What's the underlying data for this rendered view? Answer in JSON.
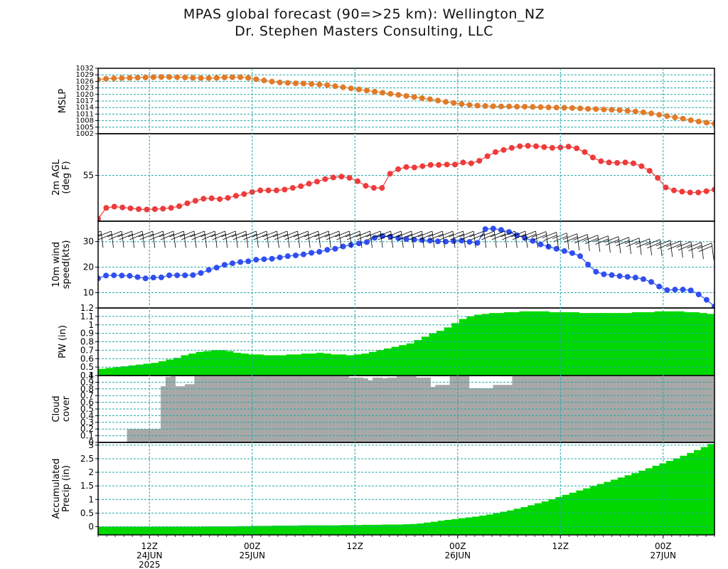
{
  "title_line1": "MPAS global forecast (90=>25 km): Wellington_NZ",
  "title_line2": "Dr. Stephen Masters Consulting, LLC",
  "colors": {
    "mslp": "#e07b29",
    "temp": "#ee3b3b",
    "wind": "#2f4ff0",
    "pw": "#00d800",
    "cloud": "#a8a8a8",
    "precip": "#00d800",
    "grid": "#22a7a7",
    "frame": "#000000"
  },
  "chart_data": [
    {
      "type": "line",
      "ylabel": [
        "MSLP"
      ],
      "ylim": [
        1002,
        1032
      ],
      "yticks": [
        1002,
        1005,
        1008,
        1011,
        1014,
        1017,
        1020,
        1023,
        1026,
        1029,
        1032
      ],
      "ytick_labels": [
        "1002",
        "1005",
        "1008",
        "1011",
        "1014",
        "1017",
        "1020",
        "1023",
        "1026",
        "1029",
        "1032"
      ],
      "tick_density": "dense",
      "marker": "circle",
      "series": [
        {
          "color": "#e07b29",
          "values": [
            1026.8,
            1027.2,
            1027.4,
            1027.5,
            1027.6,
            1027.7,
            1027.8,
            1027.9,
            1028.0,
            1028.0,
            1027.9,
            1027.8,
            1027.6,
            1027.5,
            1027.5,
            1027.6,
            1027.8,
            1027.9,
            1027.9,
            1027.6,
            1027.0,
            1026.4,
            1025.9,
            1025.5,
            1025.3,
            1025.1,
            1025.0,
            1024.8,
            1024.6,
            1024.3,
            1023.8,
            1023.3,
            1022.8,
            1022.3,
            1021.8,
            1021.3,
            1020.8,
            1020.3,
            1019.8,
            1019.3,
            1018.8,
            1018.3,
            1017.8,
            1017.2,
            1016.6,
            1016.1,
            1015.6,
            1015.2,
            1014.9,
            1014.7,
            1014.6,
            1014.5,
            1014.5,
            1014.4,
            1014.4,
            1014.3,
            1014.2,
            1014.1,
            1014.0,
            1013.9,
            1013.8,
            1013.6,
            1013.4,
            1013.3,
            1013.1,
            1013.0,
            1012.8,
            1012.5,
            1012.2,
            1011.8,
            1011.3,
            1010.7,
            1010.1,
            1009.5,
            1008.9,
            1008.2,
            1007.6,
            1007.1,
            1006.6
          ]
        }
      ]
    },
    {
      "type": "line",
      "ylabel": [
        "2m AGL",
        "(deg F)"
      ],
      "ylim": [
        44,
        65
      ],
      "yticks": [
        55
      ],
      "ytick_labels": [
        "55"
      ],
      "marker": "circle",
      "series": [
        {
          "color": "#ee3b3b",
          "values": [
            44.6,
            47.2,
            47.5,
            47.3,
            47.1,
            46.9,
            46.8,
            46.9,
            47.0,
            47.2,
            47.6,
            48.3,
            48.9,
            49.4,
            49.5,
            49.3,
            49.6,
            50.1,
            50.5,
            51.0,
            51.4,
            51.4,
            51.4,
            51.6,
            52.0,
            52.4,
            53.0,
            53.5,
            54.1,
            54.5,
            54.7,
            54.4,
            53.6,
            52.5,
            52.0,
            52.0,
            55.4,
            56.5,
            57.0,
            56.9,
            57.2,
            57.5,
            57.5,
            57.6,
            57.6,
            58.1,
            57.9,
            58.5,
            59.6,
            60.6,
            61.1,
            61.6,
            62.0,
            62.1,
            62.0,
            61.8,
            61.6,
            61.7,
            61.9,
            61.5,
            60.6,
            59.3,
            58.4,
            58.1,
            58.0,
            58.1,
            57.9,
            57.2,
            56.1,
            54.4,
            52.1,
            51.4,
            51.1,
            50.9,
            50.9,
            51.2,
            51.6
          ]
        }
      ]
    },
    {
      "type": "line",
      "ylabel": [
        "10m wind",
        "speed(kts)"
      ],
      "ylim": [
        4,
        38
      ],
      "yticks": [
        10,
        20,
        30
      ],
      "ytick_labels": [
        "10",
        "20",
        "30"
      ],
      "marker": "circle",
      "barbs": "wind barbs along top",
      "series": [
        {
          "color": "#2f4ff0",
          "values": [
            15.6,
            16.7,
            16.8,
            16.7,
            16.6,
            16.1,
            15.6,
            15.9,
            16.0,
            16.8,
            16.8,
            16.8,
            16.9,
            17.7,
            18.9,
            19.8,
            20.9,
            21.5,
            22.0,
            22.3,
            22.9,
            23.1,
            23.3,
            23.8,
            24.3,
            24.6,
            25.0,
            25.6,
            26.0,
            26.8,
            27.2,
            28.1,
            28.7,
            29.3,
            29.8,
            31.5,
            32.2,
            31.9,
            31.3,
            31.0,
            30.8,
            30.6,
            30.4,
            30.1,
            30.0,
            30.2,
            30.4,
            29.9,
            29.5,
            34.9,
            35.1,
            34.6,
            33.8,
            32.5,
            31.4,
            30.3,
            28.9,
            28.0,
            27.2,
            26.3,
            25.5,
            24.3,
            21.0,
            18.2,
            17.2,
            16.9,
            16.5,
            16.2,
            15.9,
            15.3,
            14.2,
            12.4,
            11.0,
            11.2,
            11.2,
            10.9,
            9.3,
            7.2,
            4.6
          ]
        }
      ]
    },
    {
      "type": "area",
      "ylabel": [
        "PW (in)"
      ],
      "ylim": [
        0.4,
        1.2
      ],
      "yticks": [
        0.4,
        0.5,
        0.6,
        0.7,
        0.8,
        0.9,
        1.0,
        1.1,
        1.2
      ],
      "ytick_labels": [
        "0.4",
        "0.5",
        "0.6",
        "0.7",
        "0.8",
        "0.9",
        "1",
        "1.1",
        "1.2"
      ],
      "series": [
        {
          "color": "#00d800",
          "values": [
            0.48,
            0.49,
            0.5,
            0.51,
            0.52,
            0.53,
            0.54,
            0.55,
            0.57,
            0.59,
            0.61,
            0.64,
            0.66,
            0.68,
            0.69,
            0.7,
            0.7,
            0.69,
            0.67,
            0.66,
            0.65,
            0.65,
            0.64,
            0.64,
            0.64,
            0.65,
            0.65,
            0.66,
            0.66,
            0.67,
            0.66,
            0.65,
            0.65,
            0.64,
            0.65,
            0.66,
            0.68,
            0.7,
            0.72,
            0.74,
            0.76,
            0.78,
            0.82,
            0.86,
            0.9,
            0.93,
            0.97,
            1.02,
            1.07,
            1.1,
            1.12,
            1.13,
            1.14,
            1.14,
            1.15,
            1.15,
            1.16,
            1.16,
            1.16,
            1.16,
            1.15,
            1.15,
            1.15,
            1.15,
            1.14,
            1.14,
            1.14,
            1.14,
            1.14,
            1.14,
            1.14,
            1.15,
            1.15,
            1.15,
            1.16,
            1.16,
            1.16,
            1.16,
            1.15,
            1.15,
            1.14,
            1.13
          ]
        }
      ]
    },
    {
      "type": "bar",
      "ylabel": [
        "Cloud",
        "cover"
      ],
      "ylim": [
        0,
        1.0
      ],
      "yticks": [
        0,
        0.1,
        0.2,
        0.3,
        0.4,
        0.5,
        0.6,
        0.7,
        0.8,
        0.9,
        1.0
      ],
      "ytick_labels": [
        "0",
        "0.1",
        "0.2",
        "0.3",
        "0.4",
        "0.5",
        "0.6",
        "0.7",
        "0.8",
        "0.9",
        "1"
      ],
      "series": [
        {
          "color": "#a8a8a8",
          "values": [
            0,
            0,
            0,
            0,
            0,
            0,
            0.2,
            0.2,
            0.2,
            0.2,
            0.2,
            0.2,
            0.2,
            0.84,
            0.98,
            1.0,
            0.84,
            0.84,
            0.87,
            0.87,
            1.0,
            1.0,
            1.0,
            1.0,
            1.0,
            1.0,
            1.0,
            1.0,
            1.0,
            1.0,
            1.0,
            1.0,
            1.0,
            1.0,
            1.0,
            1.0,
            1.0,
            1.0,
            1.0,
            1.0,
            1.0,
            1.0,
            1.0,
            1.0,
            1.0,
            1.0,
            1.0,
            1.0,
            1.0,
            1.0,
            1.0,
            1.0,
            0.97,
            0.97,
            0.97,
            0.96,
            0.93,
            0.97,
            0.97,
            0.96,
            0.97,
            0.97,
            1.0,
            1.0,
            1.0,
            1.0,
            0.97,
            0.97,
            0.97,
            0.83,
            0.86,
            0.86,
            0.86,
            1.0,
            1.0,
            1.0,
            1.0,
            0.81,
            0.81,
            0.81,
            0.81,
            0.81,
            0.86,
            0.86,
            0.86,
            0.86,
            1.0,
            1.0,
            1.0,
            1.0,
            1.0,
            1.0,
            1.0,
            1.0,
            1.0,
            1.0,
            1.0,
            1.0,
            1.0,
            1.0,
            1.0,
            1.0,
            1.0,
            1.0,
            1.0,
            1.0,
            1.0,
            1.0,
            1.0,
            1.0,
            1.0,
            1.0,
            1.0,
            1.0,
            1.0,
            1.0,
            1.0,
            1.0,
            1.0,
            1.0,
            1.0,
            1.0,
            1.0,
            1.0,
            1.0,
            1.0,
            1.0,
            1.0
          ]
        }
      ]
    },
    {
      "type": "area",
      "ylabel": [
        "Accumulated",
        "Precip (in)"
      ],
      "ylim": [
        -0.3,
        3.1
      ],
      "yticks": [
        0,
        0.5,
        1,
        1.5,
        2,
        2.5,
        3
      ],
      "ytick_labels": [
        "0",
        "0.5",
        "1",
        "1.5",
        "2",
        "2.5",
        "3"
      ],
      "series": [
        {
          "color": "#00d800",
          "values": [
            0.0,
            0.0,
            0.0,
            0.0,
            0.0,
            0.0,
            0.0,
            0.0,
            0.0,
            0.0,
            0.0,
            0.0,
            0.0,
            0.0,
            0.0,
            0.01,
            0.01,
            0.01,
            0.01,
            0.01,
            0.02,
            0.02,
            0.03,
            0.03,
            0.03,
            0.04,
            0.04,
            0.04,
            0.04,
            0.05,
            0.05,
            0.05,
            0.05,
            0.05,
            0.05,
            0.06,
            0.06,
            0.06,
            0.07,
            0.07,
            0.07,
            0.08,
            0.08,
            0.08,
            0.09,
            0.1,
            0.12,
            0.15,
            0.18,
            0.22,
            0.25,
            0.28,
            0.31,
            0.34,
            0.37,
            0.41,
            0.45,
            0.5,
            0.55,
            0.6,
            0.66,
            0.72,
            0.79,
            0.86,
            0.93,
            1.01,
            1.09,
            1.17,
            1.25,
            1.33,
            1.41,
            1.49,
            1.57,
            1.65,
            1.73,
            1.81,
            1.89,
            1.97,
            2.06,
            2.15,
            2.24,
            2.33,
            2.42,
            2.51,
            2.61,
            2.71,
            2.82,
            2.93,
            3.04
          ]
        }
      ]
    }
  ],
  "x_axis": {
    "ticks": [
      {
        "hour_offset": 6,
        "labels": [
          "12Z",
          "24JUN",
          "2025"
        ]
      },
      {
        "hour_offset": 18,
        "labels": [
          "00Z",
          "25JUN"
        ]
      },
      {
        "hour_offset": 30,
        "labels": [
          "12Z"
        ]
      },
      {
        "hour_offset": 42,
        "labels": [
          "00Z",
          "26JUN"
        ]
      },
      {
        "hour_offset": 54,
        "labels": [
          "12Z"
        ]
      },
      {
        "hour_offset": 66,
        "labels": [
          "00Z",
          "27JUN"
        ]
      }
    ],
    "span_hours": 72
  }
}
